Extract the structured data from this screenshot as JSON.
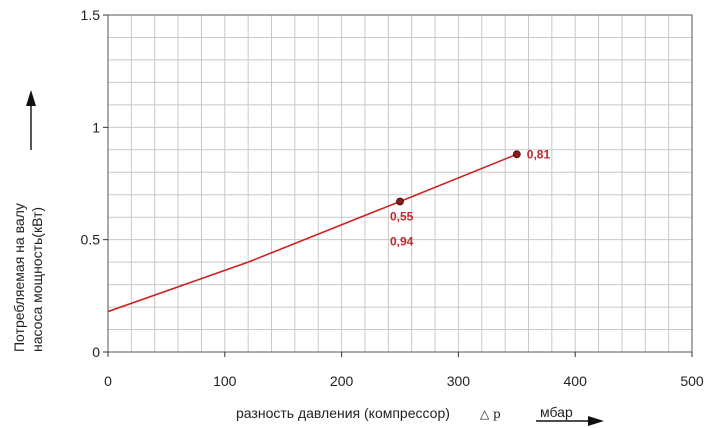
{
  "chart_data": {
    "type": "line",
    "title": "",
    "xlabel": "разность давления (компрессор)",
    "xlabel_symbol": "△ p",
    "xunit": "мбар",
    "ylabel_line1": "Потребляемая на валу",
    "ylabel_line2": "насоса мощность(кВт)",
    "xlim": [
      0,
      500
    ],
    "ylim": [
      0,
      1.5
    ],
    "x_ticks": [
      0,
      100,
      200,
      300,
      400,
      500
    ],
    "x_tick_labels": [
      "0",
      "100",
      "200",
      "300",
      "400",
      "500"
    ],
    "y_ticks": [
      0,
      0.5,
      1,
      1.5
    ],
    "y_tick_labels": [
      "0",
      "0.5",
      "1",
      "1.5"
    ],
    "grid": true,
    "minor_x_step": 20,
    "minor_y_step": 0.1,
    "series": [
      {
        "x": [
          0,
          120,
          250,
          350
        ],
        "y": [
          0.18,
          0.4,
          0.67,
          0.88
        ],
        "color": "#cc2222"
      }
    ],
    "markers": [
      {
        "x": 250,
        "y": 0.67
      },
      {
        "x": 350,
        "y": 0.88
      }
    ],
    "annotations": [
      {
        "text": "0,55",
        "x": 250,
        "y": 0.67,
        "pos": "below"
      },
      {
        "text": "0,94",
        "x": 250,
        "y": 0.67,
        "pos": "below-2"
      },
      {
        "text": "0,81",
        "x": 350,
        "y": 0.88,
        "pos": "right"
      }
    ],
    "annotation_color": "#c0282d",
    "marker_fill": "#8b1a1a"
  }
}
